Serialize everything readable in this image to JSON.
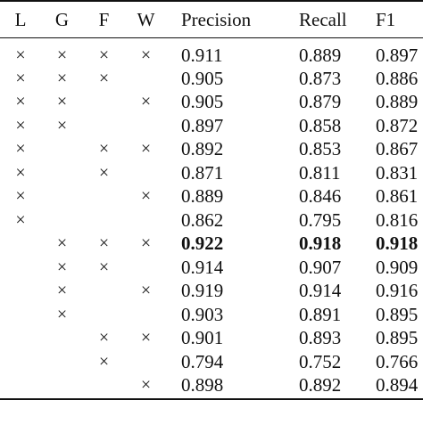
{
  "header": {
    "l": "L",
    "g": "G",
    "f": "F",
    "w": "W",
    "precision": "Precision",
    "recall": "Recall",
    "f1": "F1"
  },
  "mark_symbol": "×",
  "rows": [
    {
      "l": "×",
      "g": "×",
      "f": "×",
      "w": "×",
      "precision": "0.911",
      "recall": "0.889",
      "f1": "0.897",
      "bold": false
    },
    {
      "l": "×",
      "g": "×",
      "f": "×",
      "w": "",
      "precision": "0.905",
      "recall": "0.873",
      "f1": "0.886",
      "bold": false
    },
    {
      "l": "×",
      "g": "×",
      "f": "",
      "w": "×",
      "precision": "0.905",
      "recall": "0.879",
      "f1": "0.889",
      "bold": false
    },
    {
      "l": "×",
      "g": "×",
      "f": "",
      "w": "",
      "precision": "0.897",
      "recall": "0.858",
      "f1": "0.872",
      "bold": false
    },
    {
      "l": "×",
      "g": "",
      "f": "×",
      "w": "×",
      "precision": "0.892",
      "recall": "0.853",
      "f1": "0.867",
      "bold": false
    },
    {
      "l": "×",
      "g": "",
      "f": "×",
      "w": "",
      "precision": "0.871",
      "recall": "0.811",
      "f1": "0.831",
      "bold": false
    },
    {
      "l": "×",
      "g": "",
      "f": "",
      "w": "×",
      "precision": "0.889",
      "recall": "0.846",
      "f1": "0.861",
      "bold": false
    },
    {
      "l": "×",
      "g": "",
      "f": "",
      "w": "",
      "precision": "0.862",
      "recall": "0.795",
      "f1": "0.816",
      "bold": false
    },
    {
      "l": "",
      "g": "×",
      "f": "×",
      "w": "×",
      "precision": "0.922",
      "recall": "0.918",
      "f1": "0.918",
      "bold": true
    },
    {
      "l": "",
      "g": "×",
      "f": "×",
      "w": "",
      "precision": "0.914",
      "recall": "0.907",
      "f1": "0.909",
      "bold": false
    },
    {
      "l": "",
      "g": "×",
      "f": "",
      "w": "×",
      "precision": "0.919",
      "recall": "0.914",
      "f1": "0.916",
      "bold": false
    },
    {
      "l": "",
      "g": "×",
      "f": "",
      "w": "",
      "precision": "0.903",
      "recall": "0.891",
      "f1": "0.895",
      "bold": false
    },
    {
      "l": "",
      "g": "",
      "f": "×",
      "w": "×",
      "precision": "0.901",
      "recall": "0.893",
      "f1": "0.895",
      "bold": false
    },
    {
      "l": "",
      "g": "",
      "f": "×",
      "w": "",
      "precision": "0.794",
      "recall": "0.752",
      "f1": "0.766",
      "bold": false
    },
    {
      "l": "",
      "g": "",
      "f": "",
      "w": "×",
      "precision": "0.898",
      "recall": "0.892",
      "f1": "0.894",
      "bold": false
    }
  ]
}
